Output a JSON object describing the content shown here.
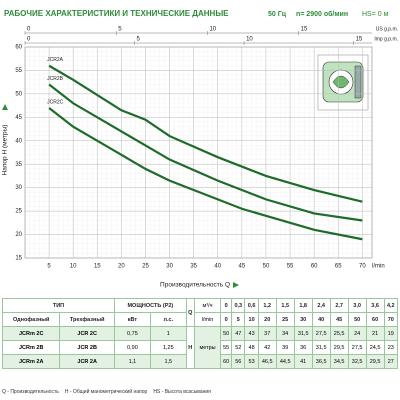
{
  "chart_data": {
    "type": "line",
    "title": "РАБОЧИЕ ХАРАКТЕРИСТИКИ И ТЕХНИЧЕСКИЕ ДАННЫЕ",
    "freq": "50 Гц",
    "speed": "n= 2900 об/мин",
    "suction": "HS= 0 м",
    "ylabel": "Напор H (метры)",
    "xlabel": "Производительность Q",
    "x_unit": "l/min",
    "xlim": [
      0,
      72
    ],
    "xticks": [
      5,
      10,
      15,
      20,
      25,
      30,
      35,
      40,
      45,
      50,
      55,
      60,
      65,
      70
    ],
    "ylim": [
      15,
      60
    ],
    "yticks": [
      15,
      20,
      25,
      30,
      35,
      40,
      45,
      50,
      55,
      60
    ],
    "grid": true,
    "us_axis": {
      "label": "US g.p.m.",
      "lim": [
        0,
        19.02
      ],
      "ticks": [
        0,
        5,
        10,
        15
      ]
    },
    "imp_axis": {
      "label": "Imp g.p.m.",
      "lim": [
        0,
        15.84
      ],
      "ticks": [
        0,
        5,
        10,
        15
      ]
    },
    "x": [
      5,
      10,
      20,
      25,
      30,
      40,
      45,
      50,
      60,
      70
    ],
    "series": [
      {
        "name": "JCR2A",
        "color": "#1e6b2a",
        "values": [
          56,
          53,
          46.5,
          44.5,
          41,
          36.5,
          34.5,
          32.5,
          29.5,
          27
        ]
      },
      {
        "name": "JCR2B",
        "color": "#1e6b2a",
        "values": [
          52,
          48,
          42,
          39,
          36,
          31.5,
          29.5,
          27.5,
          24.5,
          23
        ]
      },
      {
        "name": "JCR2C",
        "color": "#1e6b2a",
        "values": [
          47,
          43,
          37,
          34,
          31.5,
          27.5,
          25.5,
          24,
          21,
          19
        ]
      }
    ]
  },
  "table": {
    "type": "ТИП",
    "power": "МОЩНОСТЬ (P2)",
    "q": "Q",
    "m3h": "м³/ч",
    "single": "Однофазный",
    "three": "Трехфазный",
    "kw": "кВт",
    "hp": "л.с.",
    "lmin": "l/min",
    "h": "H",
    "meters": "метры",
    "q_m3h": [
      "0",
      "0,3",
      "0,6",
      "1,2",
      "1,5",
      "1,8",
      "2,4",
      "2,7",
      "3,0",
      "3,6",
      "4,2"
    ],
    "q_lmin": [
      "0",
      "5",
      "10",
      "20",
      "25",
      "30",
      "40",
      "45",
      "50",
      "60",
      "70"
    ],
    "rows": [
      [
        "JCRm 2C",
        "JCR 2C",
        "0,75",
        "1",
        "50",
        "47",
        "43",
        "37",
        "34",
        "31,5",
        "27,5",
        "25,5",
        "24",
        "21",
        "19"
      ],
      [
        "JCRm 2B",
        "JCR 2B",
        "0,90",
        "1,25",
        "55",
        "52",
        "48",
        "42",
        "39",
        "36",
        "31,5",
        "29,5",
        "27,5",
        "24,5",
        "23"
      ],
      [
        "JCRm 2A",
        "JCR 2A",
        "1,1",
        "1,5",
        "60",
        "56",
        "53",
        "46,5",
        "44,5",
        "41",
        "36,5",
        "34,5",
        "32,5",
        "29,5",
        "27"
      ]
    ]
  },
  "footer": [
    "Q - Производительность",
    "H - Общий манометрический напор",
    "HS - Высота всасывания"
  ]
}
